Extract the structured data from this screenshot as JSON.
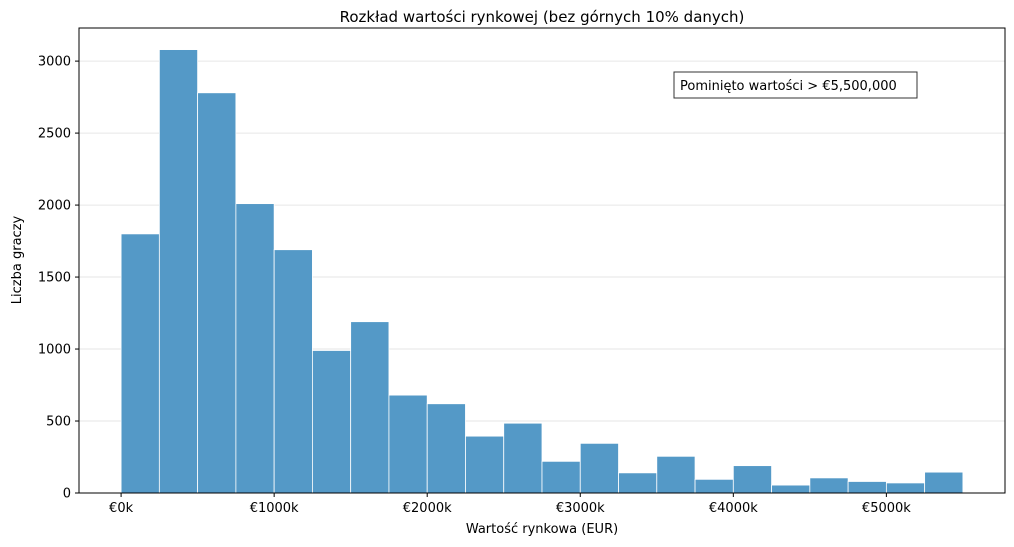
{
  "chart_data": {
    "type": "bar",
    "title": "Rozkład wartości rynkowej (bez górnych 10% danych)",
    "xlabel": "Wartość rynkowa (EUR)",
    "ylabel": "Liczba graczy",
    "annotation": "Pominięto wartości > €5,500,000",
    "xlim": [
      -275,
      5775
    ],
    "ylim": [
      0,
      3230
    ],
    "bin_width": 250,
    "x_ticks": [
      0,
      1000,
      2000,
      3000,
      4000,
      5000
    ],
    "x_tick_labels": [
      "€0k",
      "€1000k",
      "€2000k",
      "€3000k",
      "€4000k",
      "€5000k"
    ],
    "y_ticks": [
      0,
      500,
      1000,
      1500,
      2000,
      2500,
      3000
    ],
    "y_tick_labels": [
      "0",
      "500",
      "1000",
      "1500",
      "2000",
      "2500",
      "3000"
    ],
    "grid": "horizontal",
    "bar_color": "#5499c7",
    "bins": [
      {
        "start": 0,
        "value": 1800
      },
      {
        "start": 250,
        "value": 3080
      },
      {
        "start": 500,
        "value": 2780
      },
      {
        "start": 750,
        "value": 2010
      },
      {
        "start": 1000,
        "value": 1690
      },
      {
        "start": 1250,
        "value": 990
      },
      {
        "start": 1500,
        "value": 1190
      },
      {
        "start": 1750,
        "value": 680
      },
      {
        "start": 2000,
        "value": 620
      },
      {
        "start": 2250,
        "value": 395
      },
      {
        "start": 2500,
        "value": 485
      },
      {
        "start": 2750,
        "value": 220
      },
      {
        "start": 3000,
        "value": 345
      },
      {
        "start": 3250,
        "value": 140
      },
      {
        "start": 3500,
        "value": 255
      },
      {
        "start": 3750,
        "value": 95
      },
      {
        "start": 4000,
        "value": 190
      },
      {
        "start": 4250,
        "value": 55
      },
      {
        "start": 4500,
        "value": 105
      },
      {
        "start": 4750,
        "value": 80
      },
      {
        "start": 5000,
        "value": 70
      },
      {
        "start": 5250,
        "value": 145
      }
    ]
  }
}
